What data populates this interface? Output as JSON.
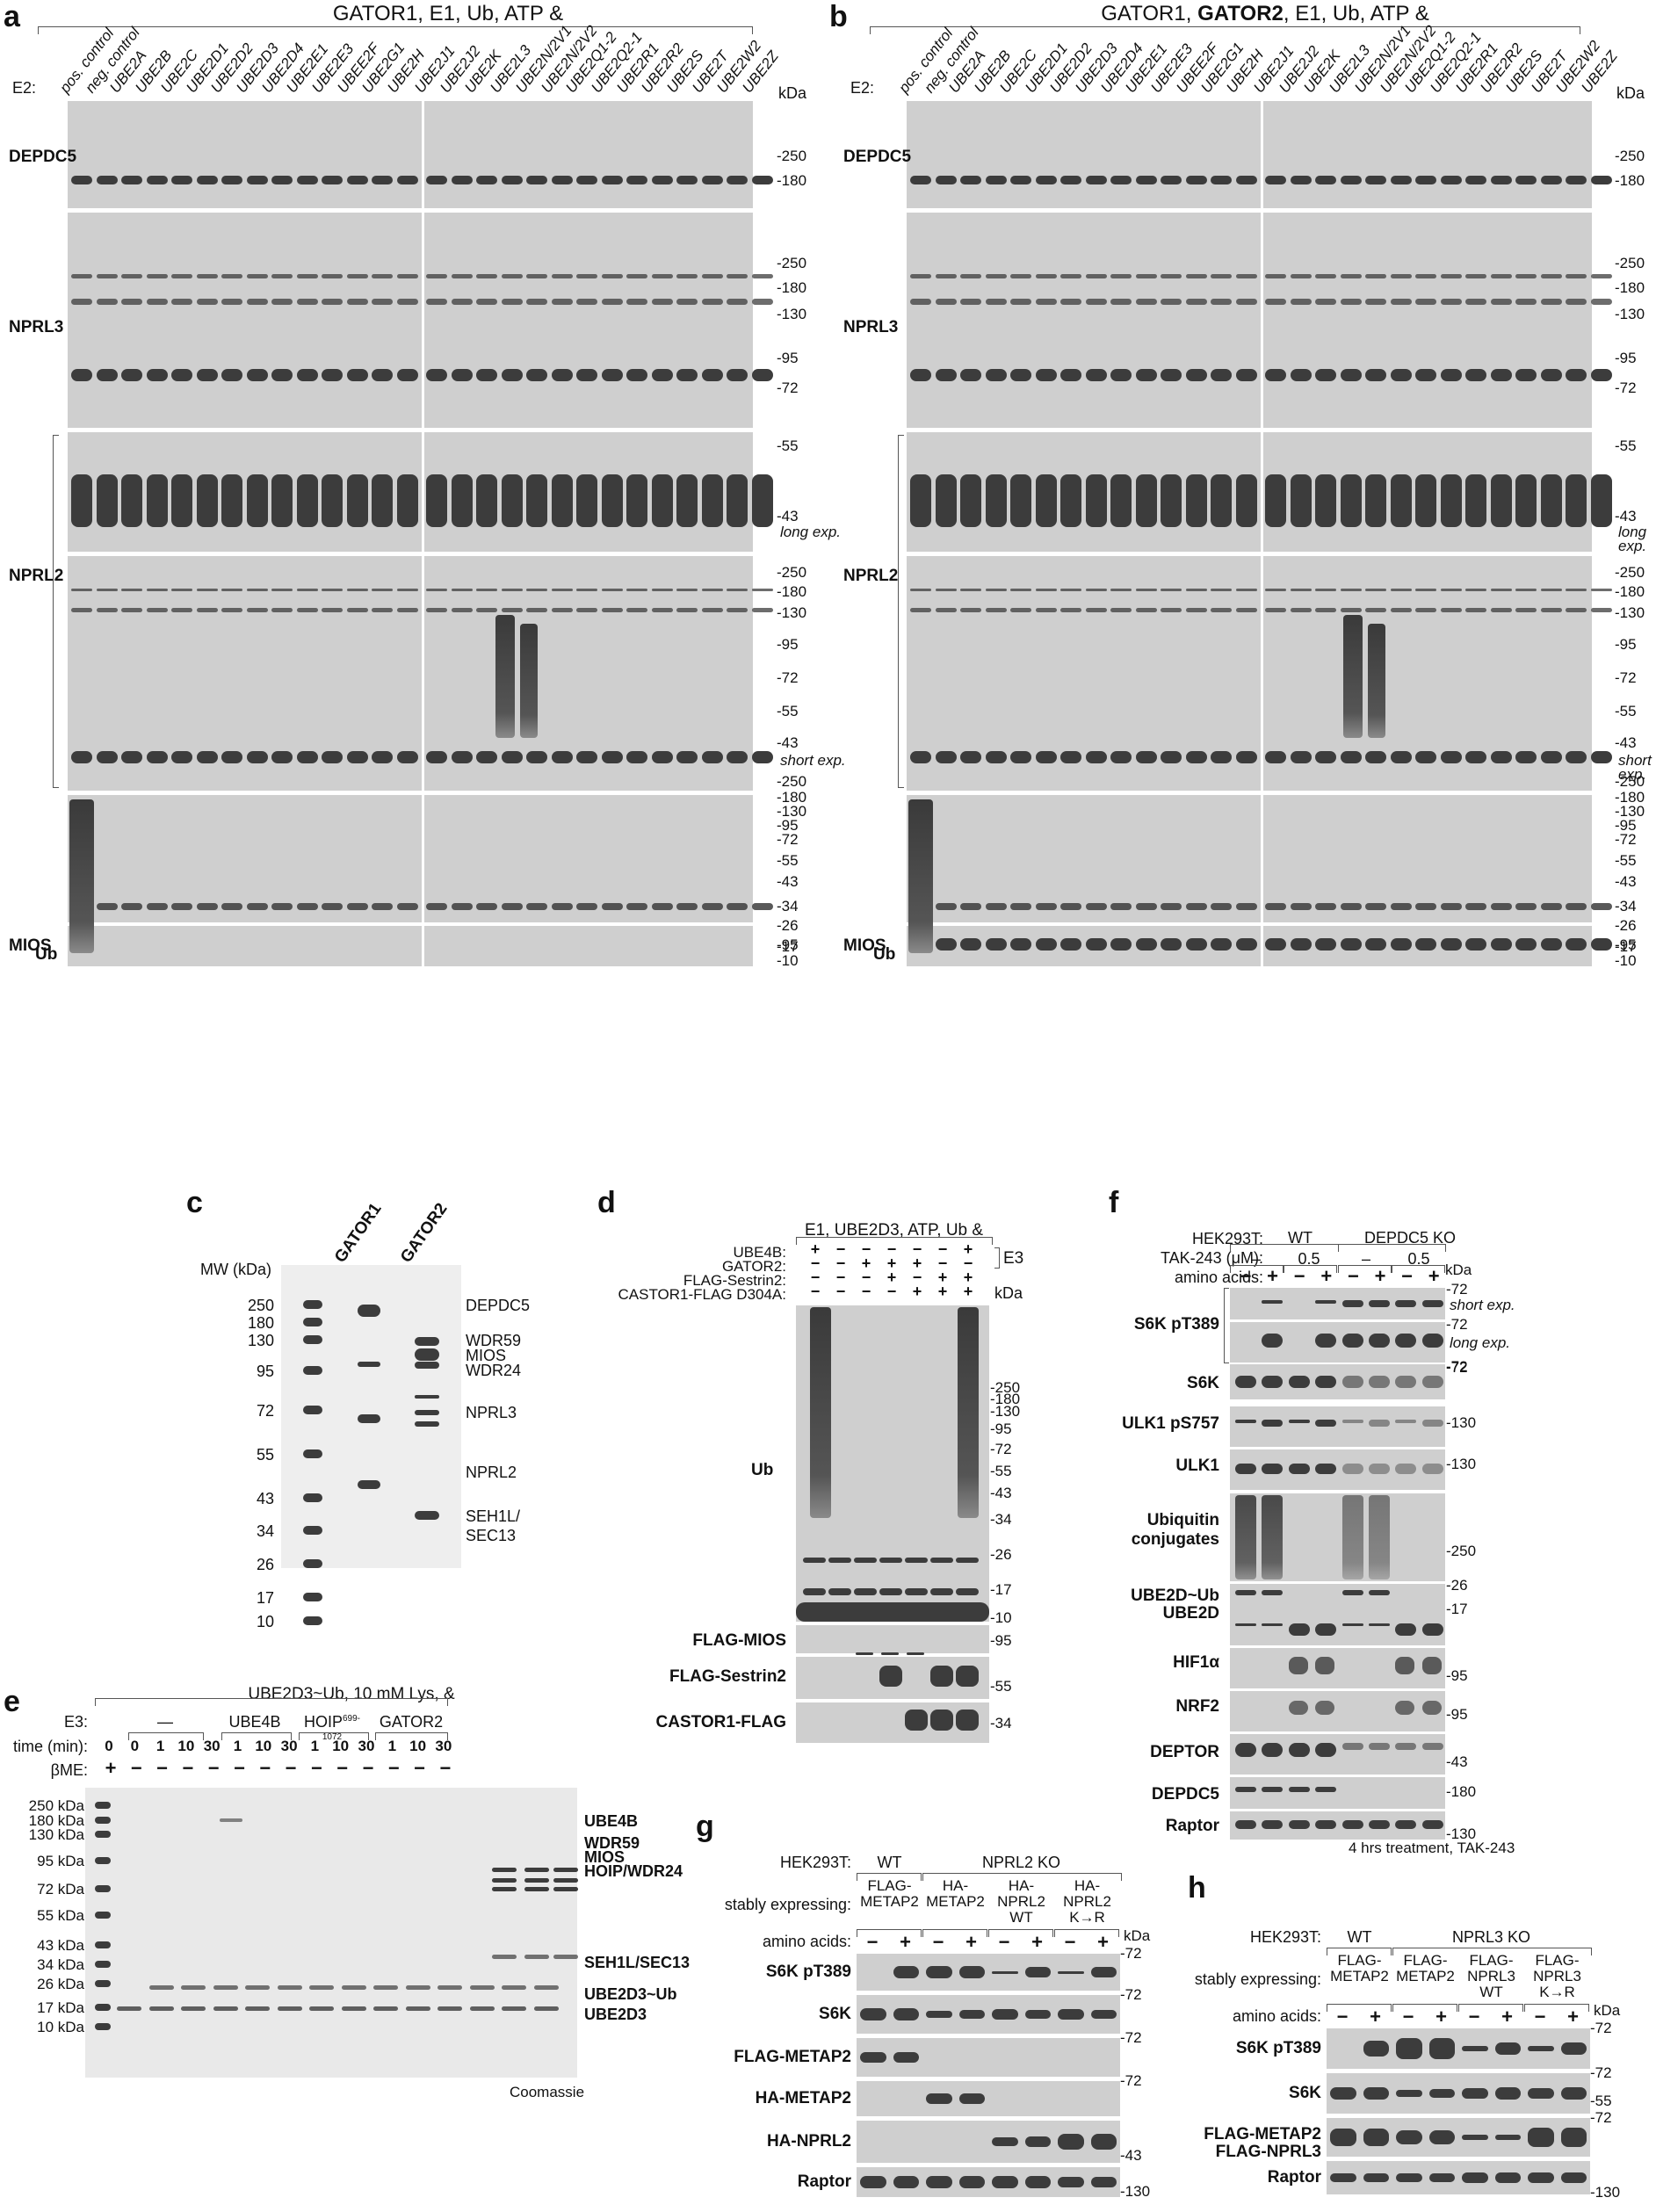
{
  "panels": {
    "a": {
      "label": "a",
      "title": "GATOR1, E1, Ub, ATP &",
      "e2_label": "E2:",
      "kda_label": "kDa",
      "lanes_left": [
        "pos. control",
        "neg. control",
        "UBE2A",
        "UBE2B",
        "UBE2C",
        "UBE2D1",
        "UBE2D2",
        "UBE2D3",
        "UBE2D4",
        "UBE2E1",
        "UBE2E3",
        "UBEE2F",
        "UBE2G1",
        "UBE2H"
      ],
      "lanes_right": [
        "UBE2J1",
        "UBE2J2",
        "UBE2K",
        "UBE2L3",
        "UBE2N/2V1",
        "UBE2N/2V2",
        "UBE2Q1-2",
        "UBE2Q2-1",
        "UBE2R1",
        "UBE2R2",
        "UBE2S",
        "UBE2T",
        "UBE2W2",
        "UBE2Z"
      ],
      "blots": [
        {
          "name": "DEPDC5",
          "markers": [
            "250",
            "180"
          ]
        },
        {
          "name": "NPRL3",
          "markers": [
            "250",
            "180",
            "130",
            "95",
            "72"
          ]
        },
        {
          "name": "NPRL2",
          "markers_long": [
            "55",
            "43"
          ],
          "long_exp": "long exp.",
          "markers_short": [
            "250",
            "180",
            "130",
            "95",
            "72",
            "55",
            "43"
          ],
          "short_exp": "short exp."
        },
        {
          "name": "Ub",
          "markers": [
            "250",
            "180",
            "130",
            "95",
            "72",
            "55",
            "43",
            "34",
            "26",
            "17",
            "10"
          ]
        },
        {
          "name": "MIOS",
          "markers": [
            "95"
          ]
        }
      ]
    },
    "b": {
      "label": "b",
      "title_pre": "GATOR1, ",
      "title_bold": "GATOR2",
      "title_post": ", E1, Ub, ATP &",
      "e2_label": "E2:",
      "kda_label": "kDa"
    },
    "c": {
      "label": "c",
      "lanes": [
        "GATOR1",
        "GATOR2"
      ],
      "mw_title": "MW (kDa)",
      "markers": [
        "250",
        "180",
        "130",
        "95",
        "72",
        "55",
        "43",
        "34",
        "26",
        "17",
        "10"
      ],
      "bands": [
        "DEPDC5",
        "WDR59",
        "MIOS",
        "WDR24",
        "NPRL3",
        "NPRL2",
        "SEH1L/",
        "SEC13"
      ]
    },
    "d": {
      "label": "d",
      "title": "E1, UBE2D3, ATP, Ub &",
      "e3_label": "E3",
      "kda_label": "kDa",
      "conditions": [
        {
          "name": "UBE4B:",
          "values": [
            "+",
            "−",
            "−",
            "−",
            "−",
            "−",
            "+"
          ]
        },
        {
          "name": "GATOR2:",
          "values": [
            "−",
            "−",
            "+",
            "+",
            "+",
            "−",
            "−"
          ]
        },
        {
          "name": "FLAG-Sestrin2:",
          "values": [
            "−",
            "−",
            "−",
            "+",
            "−",
            "+",
            "+"
          ]
        },
        {
          "name": "CASTOR1-FLAG D304A:",
          "values": [
            "−",
            "−",
            "−",
            "−",
            "+",
            "+",
            "+"
          ]
        }
      ],
      "blots": [
        {
          "name": "Ub",
          "markers": [
            "250",
            "180",
            "130",
            "95",
            "72",
            "55",
            "43",
            "34",
            "26",
            "17",
            "10"
          ]
        },
        {
          "name": "FLAG-MIOS",
          "markers": [
            "95"
          ]
        },
        {
          "name": "FLAG-Sestrin2",
          "markers": [
            "55"
          ]
        },
        {
          "name": "CASTOR1-FLAG",
          "markers": [
            "34"
          ]
        }
      ]
    },
    "e": {
      "label": "e",
      "title": "UBE2D3~Ub, 10 mM Lys, &",
      "e3_label": "E3:",
      "e3_groups": [
        "—",
        "UBE4B",
        "HOIP",
        "GATOR2"
      ],
      "hoip_sup": "699-1072",
      "time_label": "time (min):",
      "times": [
        "0",
        "0",
        "1",
        "10",
        "30",
        "1",
        "10",
        "30",
        "1",
        "10",
        "30",
        "1",
        "10",
        "30"
      ],
      "bme_label": "βME:",
      "bme": [
        "+",
        "−",
        "−",
        "−",
        "−",
        "−",
        "−",
        "−",
        "−",
        "−",
        "−",
        "−",
        "−",
        "−"
      ],
      "markers": [
        "250 kDa",
        "180 kDa",
        "130 kDa",
        "95 kDa",
        "72 kDa",
        "55 kDa",
        "43 kDa",
        "34 kDa",
        "26 kDa",
        "17 kDa",
        "10 kDa"
      ],
      "bands": [
        "UBE4B",
        "WDR59",
        "MIOS",
        "HOIP/WDR24",
        "SEH1L/SEC13",
        "UBE2D3~Ub",
        "UBE2D3"
      ],
      "stain": "Coomassie"
    },
    "f": {
      "label": "f",
      "cell_label": "HEK293T:",
      "cells": [
        "WT",
        "DEPDC5 KO"
      ],
      "tak_label": "TAK-243 (μM):",
      "tak": [
        "–",
        "0.5",
        "–",
        "0.5"
      ],
      "aa_label": "amino acids:",
      "aa": [
        "−",
        "+",
        "−",
        "+",
        "−",
        "+",
        "−",
        "+"
      ],
      "kda_label": "kDa",
      "blots": [
        {
          "name": "S6K pT389",
          "short_exp": "short exp.",
          "long_exp": "long exp.",
          "markers": [
            "72",
            "72",
            "72"
          ]
        },
        {
          "name": "S6K",
          "markers": [
            "72"
          ]
        },
        {
          "name": "ULK1 pS757",
          "markers": [
            "130"
          ]
        },
        {
          "name": "ULK1",
          "markers": [
            "130"
          ]
        },
        {
          "name": "Ubiquitin conjugates",
          "line1": "Ubiquitin",
          "line2": "conjugates",
          "markers": [
            "250"
          ]
        },
        {
          "name": "UBE2D~Ub",
          "markers": [
            "26",
            "17"
          ]
        },
        {
          "name": "UBE2D"
        },
        {
          "name": "HIF1α",
          "markers": [
            "95"
          ]
        },
        {
          "name": "NRF2",
          "markers": [
            "95"
          ]
        },
        {
          "name": "DEPTOR",
          "markers": [
            "43"
          ]
        },
        {
          "name": "DEPDC5",
          "markers": [
            "180"
          ]
        },
        {
          "name": "Raptor",
          "markers": [
            "130"
          ]
        }
      ],
      "footer": "4 hrs treatment, TAK-243"
    },
    "g": {
      "label": "g",
      "cell_label": "HEK293T:",
      "cells": [
        "WT",
        "NPRL2 KO"
      ],
      "stable_label": "stably expressing:",
      "stable": [
        [
          "FLAG-",
          "METAP2"
        ],
        [
          "HA-",
          "METAP2"
        ],
        [
          "HA-",
          "NPRL2",
          "WT"
        ],
        [
          "HA-",
          "NPRL2",
          "K→R"
        ]
      ],
      "aa_label": "amino acids:",
      "aa": [
        "−",
        "+",
        "−",
        "+",
        "−",
        "+",
        "−",
        "+"
      ],
      "kda_label": "kDa",
      "blots": [
        {
          "name": "S6K pT389",
          "markers": [
            "72"
          ]
        },
        {
          "name": "S6K",
          "markers": [
            "72"
          ]
        },
        {
          "name": "FLAG-METAP2",
          "markers": [
            "72"
          ]
        },
        {
          "name": "HA-METAP2",
          "markers": [
            "72"
          ]
        },
        {
          "name": "HA-NPRL2",
          "markers": [
            "43"
          ]
        },
        {
          "name": "Raptor",
          "markers": [
            "130"
          ]
        }
      ]
    },
    "h": {
      "label": "h",
      "cell_label": "HEK293T:",
      "cells": [
        "WT",
        "NPRL3 KO"
      ],
      "stable_label": "stably expressing:",
      "stable": [
        [
          "FLAG-",
          "METAP2"
        ],
        [
          "FLAG-",
          "METAP2"
        ],
        [
          "FLAG-",
          "NPRL3",
          "WT"
        ],
        [
          "FLAG-",
          "NPRL3",
          "K→R"
        ]
      ],
      "aa_label": "amino acids:",
      "aa": [
        "−",
        "+",
        "−",
        "+",
        "−",
        "+",
        "−",
        "+"
      ],
      "kda_label": "kDa",
      "blots": [
        {
          "name": "S6K pT389",
          "markers": [
            "72"
          ]
        },
        {
          "name": "S6K",
          "markers": [
            "72",
            "55"
          ]
        },
        {
          "name": "FLAG-METAP2 / FLAG-NPRL3",
          "line1": "FLAG-METAP2",
          "line2": "FLAG-NPRL3",
          "markers": [
            "72"
          ]
        },
        {
          "name": "Raptor",
          "markers": [
            "130"
          ]
        }
      ]
    }
  }
}
